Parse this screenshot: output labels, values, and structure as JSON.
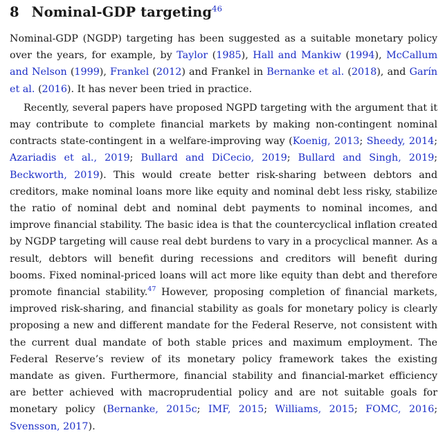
{
  "section": {
    "number": "8",
    "title": "Nominal-GDP targeting",
    "footnote": "46"
  },
  "paragraph1": {
    "t0": "Nominal-GDP (NGDP) targeting has been suggested as a suitable monetary policy over the years, for example, by ",
    "c1": "Taylor",
    "t1": " (",
    "c1y": "1985",
    "t2": "), ",
    "c2": "Hall and Mankiw",
    "t3": " (",
    "c2y": "1994",
    "t4": "), ",
    "c3": "McCallum and Nelson",
    "t5": " (",
    "c3y": "1999",
    "t6": "), ",
    "c4": "Frankel",
    "t7": " (",
    "c4y": "2012",
    "t8": ") and Frankel in ",
    "c5": "Bernanke et al.",
    "t9": " (",
    "c5y": "2018",
    "t10": "), and ",
    "c6": "Garín et al.",
    "t11": " (",
    "c6y": "2016",
    "t12": "). It has never been tried in practice."
  },
  "paragraph2": {
    "t0": "Recently, several papers have proposed NGPD targeting with the argument that it may contribute to complete financial markets by making non-contingent nominal contracts state-contingent in a welfare-improving way (",
    "c1": "Koenig, 2013",
    "s1": "; ",
    "c2": "Sheedy, 2014",
    "s2": "; ",
    "c3": "Azariadis et al., 2019",
    "s3": "; ",
    "c4": "Bullard and DiCecio, 2019",
    "s4": "; ",
    "c5": "Bullard and Singh, 2019",
    "s5": "; ",
    "c6": "Beckworth, 2019",
    "t1": "). This would create better risk-sharing between debtors and creditors, make nominal loans more like equity and nominal debt less risky, stabilize the ratio of nominal debt and nominal debt payments to nominal incomes, and improve financial stability. The basic idea is that the countercyclical inflation created by NGDP targeting will cause real debt burdens to vary in a procyclical manner. As a result, debtors will benefit during recessions and creditors will benefit during booms. Fixed nominal-priced loans will act more like equity than debt and therefore promote financial stability.",
    "fn": "47",
    "t2": " However, proposing completion of financial markets, improved risk-sharing, and financial stability as goals for monetary policy is clearly proposing a new and different mandate for the Federal Reserve, not consistent with the current dual mandate of both stable prices and maximum employment. The Federal Reserve’s review of its monetary policy framework takes the existing mandate as given. Furthermore, financial stability and financial-market efficiency are better achieved with macroprudential policy and are not suitable goals for monetary policy (",
    "c7": "Bernanke, 2015c",
    "s7": "; ",
    "c8": "IMF, 2015",
    "s8": "; ",
    "c9": "Williams, 2015",
    "s9": "; ",
    "c10": "FOMC, 2016",
    "s10": "; ",
    "c11": "Svensson, 2017",
    "t3": ")."
  }
}
